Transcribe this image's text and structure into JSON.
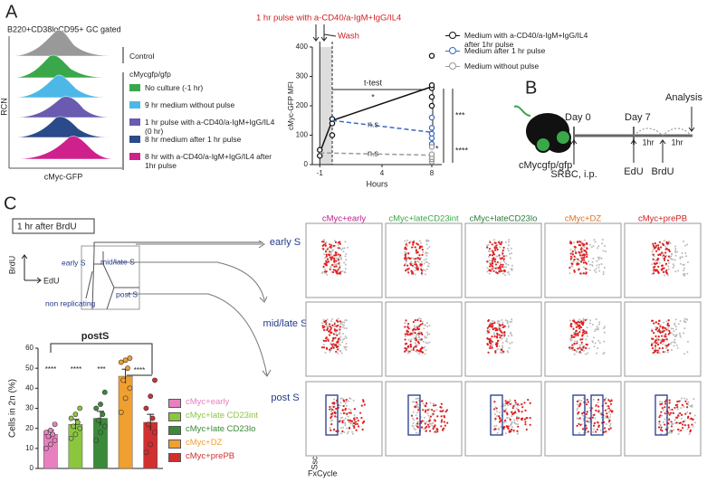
{
  "panel_a": {
    "label": "A",
    "gate": "B220+CD38loCD95+ GC gated",
    "y_label": "RCN",
    "x_label": "cMyc-GFP",
    "control": "Control",
    "group": "cMycgfp/gfp",
    "items": [
      {
        "name": "No culture (-1 hr)",
        "color": "#3aa84a"
      },
      {
        "name": "9 hr medium without pulse",
        "color": "#4db8e8"
      },
      {
        "name": "1 hr pulse with a-CD40/a-IgM+IgG/IL4 (0 hr)",
        "color": "#6a5ab0"
      },
      {
        "name": "8 hr medium after 1 hr pulse",
        "color": "#2a4a8a"
      },
      {
        "name": "8 hr with a-CD40/a-IgM+IgG/IL4 after 1hr pulse",
        "color": "#d0208c"
      }
    ]
  },
  "panel_b": {
    "label": "B",
    "mouse": "cMycgfp/gfp",
    "day0": "Day 0",
    "day7": "Day 7",
    "analysis": "Analysis",
    "hr1": "1hr",
    "hr2": "1hr",
    "edu": "EdU",
    "brdu": "BrdU",
    "srbc": "SRBC, i.p."
  },
  "panel_c": {
    "label": "C",
    "box": "1 hr after BrdU",
    "axis_y": "BrdU",
    "axis_x": "EdU",
    "gate_early": "early S",
    "gate_mid": "mid/late S",
    "gate_non": "non replicating",
    "gate_post": "post S",
    "rows": [
      "early S",
      "mid/late S",
      "post S"
    ],
    "columns": [
      {
        "name": "cMyc+early",
        "color": "#c0208c"
      },
      {
        "name": "cMyc+lateCD23int",
        "color": "#3aa84a"
      },
      {
        "name": "cMyc+lateCD23lo",
        "color": "#2a7a3a"
      },
      {
        "name": "cMyc+DZ",
        "color": "#e07020"
      },
      {
        "name": "cMyc+prePB",
        "color": "#d02020"
      }
    ],
    "n2": "2n",
    "n4": "4n",
    "ssc": "Ssc",
    "fx": "FxCycle"
  },
  "chart_data": [
    {
      "type": "line",
      "y_label": "cMyc-GFP MFI",
      "x_label": "Hours",
      "xlim": [
        -1.6,
        8.8
      ],
      "xticks": [
        -1,
        4,
        8
      ],
      "ylim": [
        0,
        400
      ],
      "yticks": [
        0,
        100,
        200,
        300,
        400
      ],
      "annotations": {
        "pulse": "1 hr pulse with a-CD40/a-IgM+IgG/IL4",
        "wash": "Wash",
        "ttest": "t-test",
        "sig": "*",
        "ns1": "n.s",
        "ns2": "n.s",
        "right": [
          "***",
          "*",
          "****"
        ]
      },
      "series": [
        {
          "name": "Medium with a-CD40/a-IgM+IgG/IL4 after 1hr pulse",
          "color": "#111111",
          "dashed": false,
          "x": [
            -1,
            0,
            8
          ],
          "values": [
            40,
            150,
            265
          ],
          "points_x": [
            -1,
            -1,
            0,
            0,
            0,
            8,
            8,
            8,
            8,
            8
          ],
          "points": [
            30,
            50,
            100,
            140,
            155,
            200,
            230,
            260,
            270,
            370
          ]
        },
        {
          "name": "Medium after 1 hr pulse",
          "color": "#3a6ac0",
          "dashed": true,
          "x": [
            0,
            8
          ],
          "values": [
            150,
            110
          ],
          "points_x": [
            8,
            8,
            8,
            8,
            8
          ],
          "points": [
            70,
            90,
            105,
            125,
            160
          ]
        },
        {
          "name": "Medium without pulse",
          "color": "#999999",
          "dashed": true,
          "x": [
            -1,
            8
          ],
          "values": [
            40,
            32
          ],
          "points_x": [
            8,
            8,
            8,
            8,
            8
          ],
          "points": [
            10,
            18,
            25,
            35,
            60
          ]
        }
      ]
    },
    {
      "type": "bar",
      "title": "postS",
      "y_label": "Cells in 2n (%)",
      "ylim": [
        0,
        60
      ],
      "yticks": [
        0,
        10,
        20,
        30,
        40,
        50,
        60
      ],
      "categories": [
        "cMyc+early",
        "cMyc+late CD23int",
        "cMyc+late CD23lo",
        "cMyc+DZ",
        "cMyc+prePB"
      ],
      "colors": [
        "#e880c0",
        "#8cc63f",
        "#3a8a3a",
        "#f0a030",
        "#d03030"
      ],
      "values": [
        17,
        22,
        25,
        46,
        23
      ],
      "errors": [
        2,
        2.5,
        3.5,
        3.5,
        4
      ],
      "points": [
        [
          10,
          12,
          14,
          16,
          17,
          18,
          19,
          22
        ],
        [
          15,
          17,
          20,
          21,
          23,
          25,
          27,
          30
        ],
        [
          14,
          18,
          21,
          24,
          27,
          30,
          32,
          38
        ],
        [
          28,
          35,
          40,
          44,
          50,
          53,
          54,
          55
        ],
        [
          8,
          12,
          18,
          22,
          25,
          30,
          36,
          44
        ]
      ],
      "sig": [
        "****",
        "****",
        "***",
        "****"
      ]
    }
  ]
}
